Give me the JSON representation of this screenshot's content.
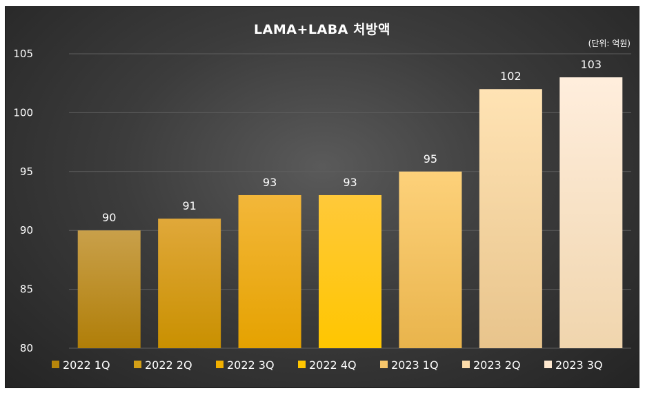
{
  "chart_data": {
    "type": "bar",
    "title": "LAMA+LABA  처방액",
    "unit_note": "(단위: 억원)",
    "xlabel": "",
    "ylabel": "",
    "ylim": [
      80,
      105
    ],
    "yticks": [
      80,
      85,
      90,
      95,
      100,
      105
    ],
    "grid": true,
    "legend_position": "bottom",
    "categories": [
      "2022 1Q",
      "2022 2Q",
      "2022 3Q",
      "2022 4Q",
      "2023 1Q",
      "2023 2Q",
      "2023 3Q"
    ],
    "values": [
      90,
      91,
      93,
      93,
      95,
      102,
      103
    ],
    "colors": [
      [
        "#c9a04a",
        "#b07e08"
      ],
      [
        "#e0a83a",
        "#c99000"
      ],
      [
        "#f3b73a",
        "#e5a200"
      ],
      [
        "#ffc93a",
        "#ffc600"
      ],
      [
        "#fdd17a",
        "#e9b44c"
      ],
      [
        "#ffe3b4",
        "#e8c48c"
      ],
      [
        "#ffeedd",
        "#f0d5ad"
      ]
    ],
    "legend_colors": [
      "#b8860b",
      "#d4a017",
      "#f2b000",
      "#ffc600",
      "#f7c66b",
      "#fcdcaa",
      "#ffe9d0"
    ]
  }
}
